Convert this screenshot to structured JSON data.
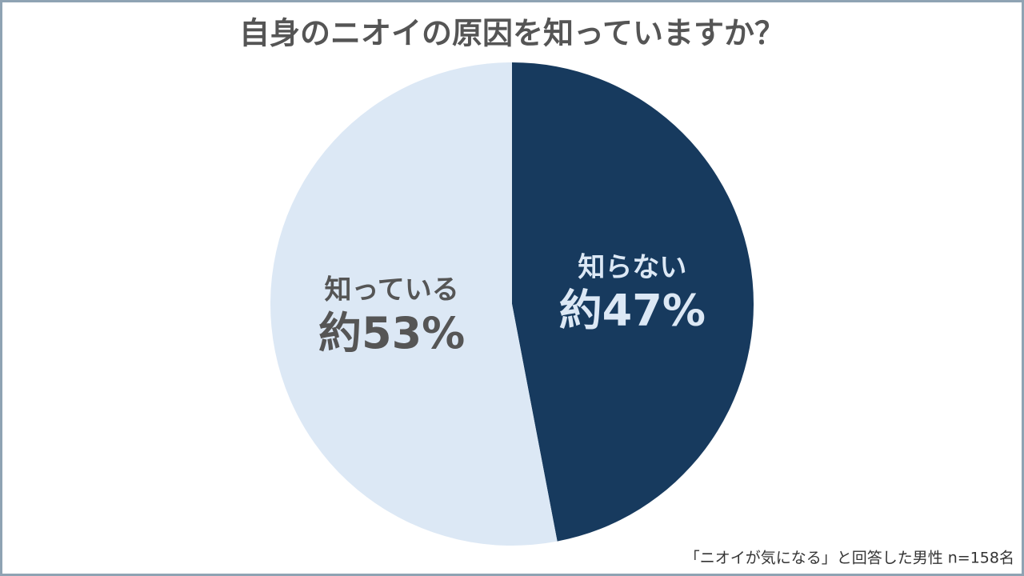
{
  "chart_data": {
    "type": "pie",
    "title": "自身のニオイの原因を知っていますか？",
    "categories": [
      "知らない",
      "知っている"
    ],
    "values": [
      47,
      53
    ],
    "value_labels": [
      "約47%",
      "約53%"
    ],
    "colors": [
      "#173a5e",
      "#dce8f5"
    ],
    "note": "「ニオイが気になる」と回答した男性 n=158名"
  }
}
